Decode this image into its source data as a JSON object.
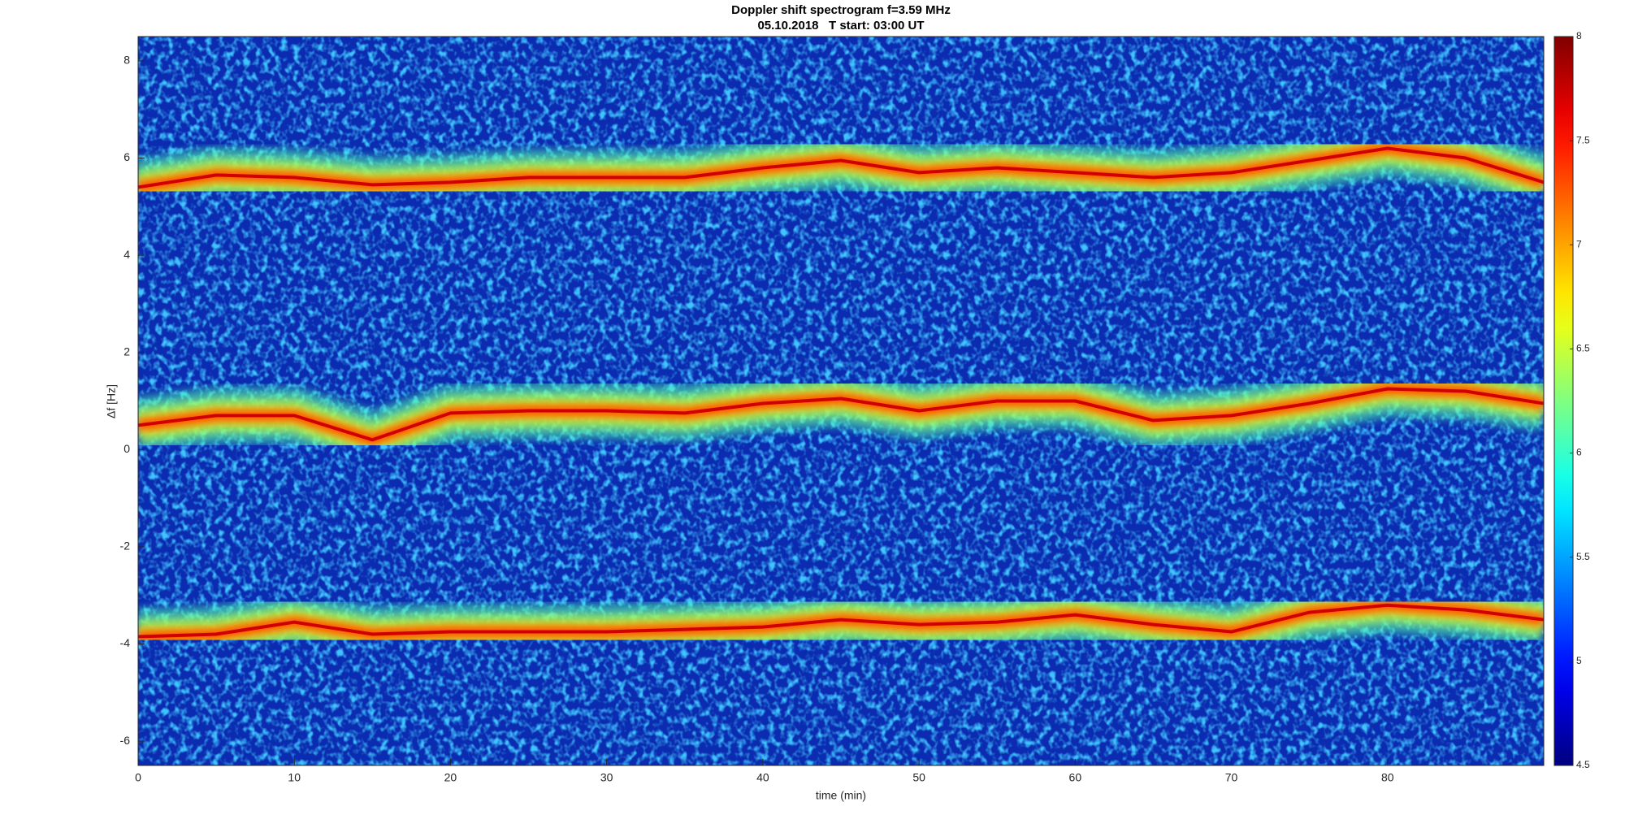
{
  "chart_data": {
    "type": "spectrogram",
    "title": "Doppler shift spectrogram f=3.59 MHz",
    "subtitle": "05.10.2018   T start: 03:00 UT",
    "x_label": "time (min)",
    "y_label": "Δf [Hz]",
    "x": [
      0,
      5,
      10,
      15,
      20,
      25,
      30,
      35,
      40,
      45,
      50,
      55,
      60,
      65,
      70,
      75,
      80,
      85,
      90
    ],
    "series": [
      {
        "values": [
          5.4,
          5.65,
          5.6,
          5.45,
          5.5,
          5.6,
          5.6,
          5.6,
          5.8,
          5.95,
          5.7,
          5.8,
          5.7,
          5.6,
          5.7,
          5.95,
          6.2,
          6.0,
          5.5
        ]
      },
      {
        "values": [
          0.5,
          0.7,
          0.7,
          0.2,
          0.75,
          0.8,
          0.8,
          0.75,
          0.95,
          1.05,
          0.8,
          1.0,
          1.0,
          0.6,
          0.7,
          0.95,
          1.25,
          1.2,
          0.95
        ]
      },
      {
        "values": [
          -3.85,
          -3.8,
          -3.55,
          -3.8,
          -3.75,
          -3.75,
          -3.75,
          -3.7,
          -3.65,
          -3.5,
          -3.6,
          -3.55,
          -3.4,
          -3.6,
          -3.75,
          -3.35,
          -3.2,
          -3.3,
          -3.5
        ]
      }
    ],
    "xlim": [
      0,
      90
    ],
    "xticks": [
      0,
      10,
      20,
      30,
      40,
      50,
      60,
      70,
      80
    ],
    "ylim": [
      -6.5,
      8.5
    ],
    "yticks": [
      -6,
      -4,
      -2,
      0,
      2,
      4,
      6,
      8
    ],
    "colormap": "jet",
    "clim": [
      4.5,
      8
    ],
    "cticks": [
      4.5,
      5,
      5.5,
      6,
      6.5,
      7,
      7.5,
      8
    ]
  }
}
